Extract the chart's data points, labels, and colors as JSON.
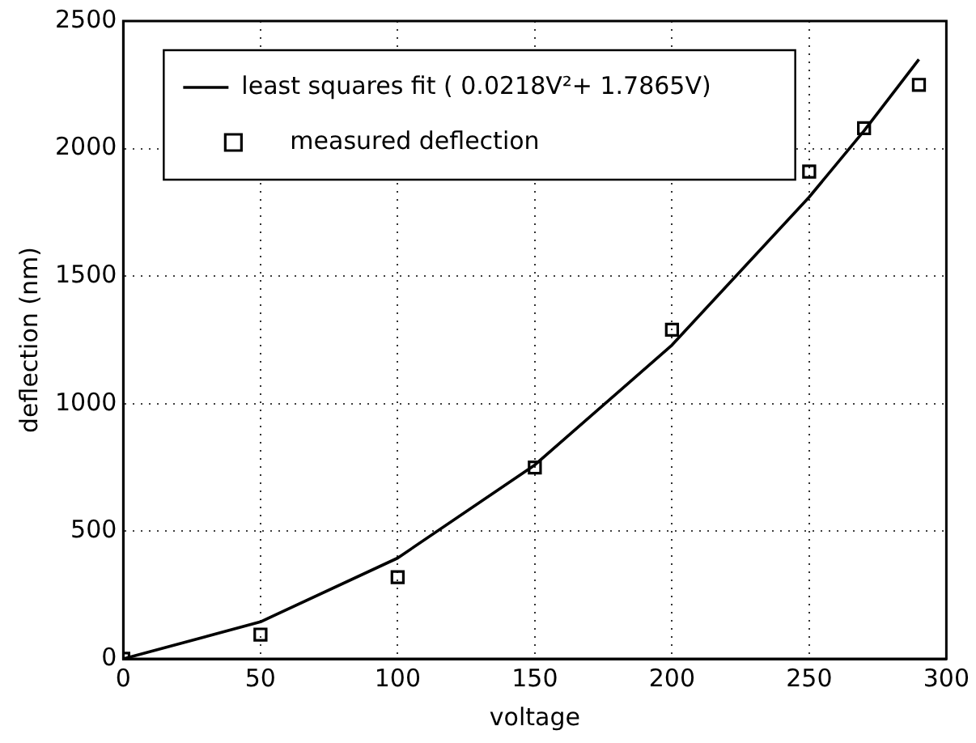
{
  "chart_data": {
    "type": "line",
    "xlabel": "voltage",
    "ylabel": "deflection (nm)",
    "xlim": [
      0,
      300
    ],
    "xticks": [
      0,
      50,
      100,
      150,
      200,
      250,
      300
    ],
    "ylim": [
      0,
      2500
    ],
    "yticks": [
      0,
      500,
      1000,
      1500,
      2000,
      2500
    ],
    "grid": true,
    "legend": "top left",
    "series": [
      {
        "name": "least squares fit ( 0.0218V²+ 1.7865V)",
        "color": "#000000",
        "marker": "none",
        "line_style": "solid",
        "x": [
          0,
          50,
          100,
          150,
          200,
          250,
          270,
          290
        ],
        "values": [
          0,
          145,
          395,
          760,
          1230,
          1810,
          2070,
          2350
        ]
      },
      {
        "name": "measured deflection",
        "type": "scatter",
        "color": "#000000",
        "marker": "square",
        "x": [
          0,
          50,
          100,
          150,
          200,
          250,
          270,
          290
        ],
        "values": [
          0,
          95,
          320,
          750,
          1290,
          1910,
          2080,
          2250
        ]
      }
    ]
  }
}
